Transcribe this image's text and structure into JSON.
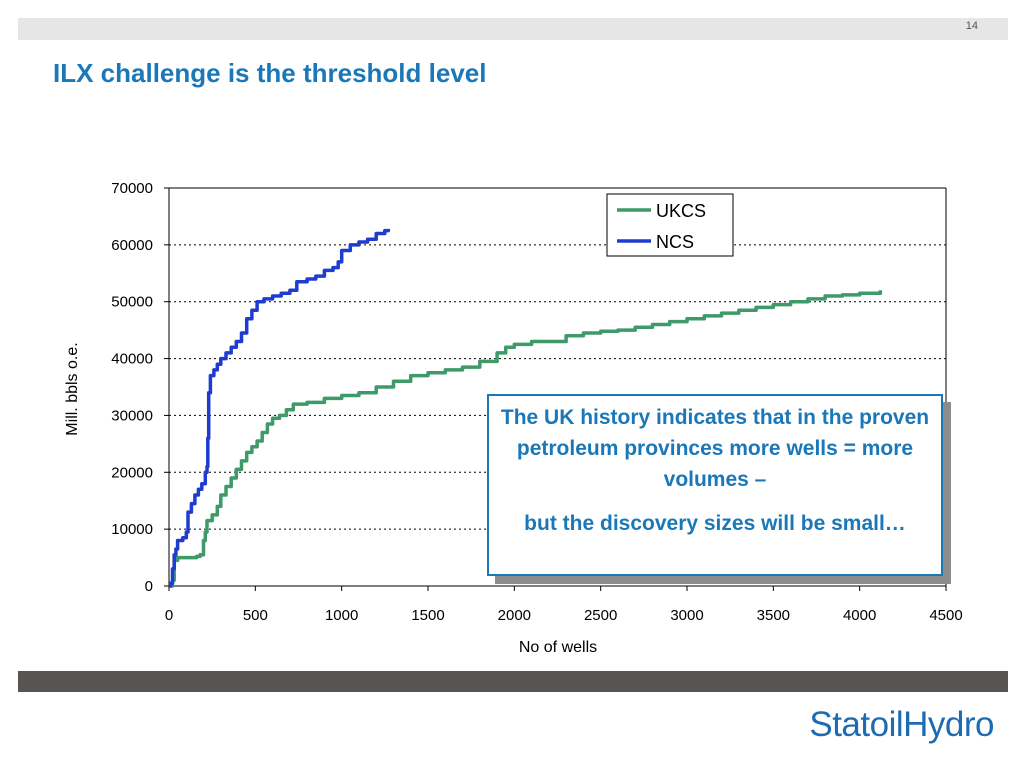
{
  "slide": {
    "page_number": "14",
    "title": "ILX challenge is the threshold level"
  },
  "callout": {
    "line1": "The UK history indicates that in the proven petroleum provinces more wells = more volumes –",
    "line2": "but the discovery sizes will be small…"
  },
  "logo": {
    "text": "StatoilHydro"
  },
  "chart_data": {
    "type": "line",
    "title": "",
    "xlabel": "No of wells",
    "ylabel": "Mill. bbls o.e.",
    "xlim": [
      0,
      4500
    ],
    "ylim": [
      0,
      70000
    ],
    "xticks": [
      0,
      500,
      1000,
      1500,
      2000,
      2500,
      3000,
      3500,
      4000,
      4500
    ],
    "yticks": [
      0,
      10000,
      20000,
      30000,
      40000,
      50000,
      60000,
      70000
    ],
    "grid": "horizontal dotted",
    "legend": "top-right",
    "series": [
      {
        "name": "UKCS",
        "color": "#3e9a68",
        "points": [
          [
            0,
            0
          ],
          [
            20,
            1000
          ],
          [
            30,
            4500
          ],
          [
            50,
            5000
          ],
          [
            120,
            5000
          ],
          [
            160,
            5200
          ],
          [
            180,
            5500
          ],
          [
            200,
            8000
          ],
          [
            210,
            9500
          ],
          [
            220,
            11500
          ],
          [
            250,
            12500
          ],
          [
            280,
            14000
          ],
          [
            300,
            16000
          ],
          [
            330,
            17500
          ],
          [
            360,
            19000
          ],
          [
            390,
            20500
          ],
          [
            420,
            22000
          ],
          [
            450,
            23500
          ],
          [
            480,
            24500
          ],
          [
            510,
            25500
          ],
          [
            540,
            27000
          ],
          [
            570,
            28500
          ],
          [
            600,
            29500
          ],
          [
            640,
            30000
          ],
          [
            680,
            31000
          ],
          [
            720,
            32000
          ],
          [
            800,
            32300
          ],
          [
            900,
            33000
          ],
          [
            1000,
            33500
          ],
          [
            1100,
            34000
          ],
          [
            1200,
            35000
          ],
          [
            1300,
            36000
          ],
          [
            1400,
            37000
          ],
          [
            1500,
            37500
          ],
          [
            1600,
            38000
          ],
          [
            1700,
            38500
          ],
          [
            1800,
            39500
          ],
          [
            1900,
            41000
          ],
          [
            1950,
            42000
          ],
          [
            2000,
            42500
          ],
          [
            2100,
            43000
          ],
          [
            2200,
            43000
          ],
          [
            2300,
            44000
          ],
          [
            2400,
            44500
          ],
          [
            2500,
            44800
          ],
          [
            2600,
            45000
          ],
          [
            2700,
            45500
          ],
          [
            2800,
            46000
          ],
          [
            2900,
            46500
          ],
          [
            3000,
            47000
          ],
          [
            3100,
            47500
          ],
          [
            3200,
            48000
          ],
          [
            3300,
            48500
          ],
          [
            3400,
            49000
          ],
          [
            3500,
            49500
          ],
          [
            3600,
            50000
          ],
          [
            3700,
            50500
          ],
          [
            3800,
            51000
          ],
          [
            3900,
            51200
          ],
          [
            4000,
            51500
          ],
          [
            4120,
            52000
          ]
        ]
      },
      {
        "name": "NCS",
        "color": "#1f3ccf",
        "points": [
          [
            0,
            0
          ],
          [
            10,
            500
          ],
          [
            20,
            3000
          ],
          [
            30,
            5500
          ],
          [
            40,
            6500
          ],
          [
            50,
            8000
          ],
          [
            80,
            8500
          ],
          [
            100,
            9500
          ],
          [
            110,
            13000
          ],
          [
            130,
            14500
          ],
          [
            150,
            16000
          ],
          [
            170,
            17000
          ],
          [
            190,
            18000
          ],
          [
            210,
            20000
          ],
          [
            220,
            21000
          ],
          [
            225,
            26000
          ],
          [
            230,
            34000
          ],
          [
            240,
            37000
          ],
          [
            260,
            38000
          ],
          [
            280,
            39000
          ],
          [
            300,
            40000
          ],
          [
            330,
            41000
          ],
          [
            360,
            42000
          ],
          [
            390,
            43000
          ],
          [
            420,
            44500
          ],
          [
            450,
            47000
          ],
          [
            480,
            48500
          ],
          [
            510,
            50000
          ],
          [
            550,
            50500
          ],
          [
            600,
            51000
          ],
          [
            650,
            51500
          ],
          [
            700,
            52000
          ],
          [
            740,
            53500
          ],
          [
            800,
            54000
          ],
          [
            850,
            54500
          ],
          [
            900,
            55500
          ],
          [
            950,
            56000
          ],
          [
            980,
            57000
          ],
          [
            1000,
            59000
          ],
          [
            1050,
            60000
          ],
          [
            1100,
            60500
          ],
          [
            1150,
            61000
          ],
          [
            1200,
            62000
          ],
          [
            1250,
            62500
          ],
          [
            1270,
            62800
          ]
        ]
      }
    ]
  }
}
